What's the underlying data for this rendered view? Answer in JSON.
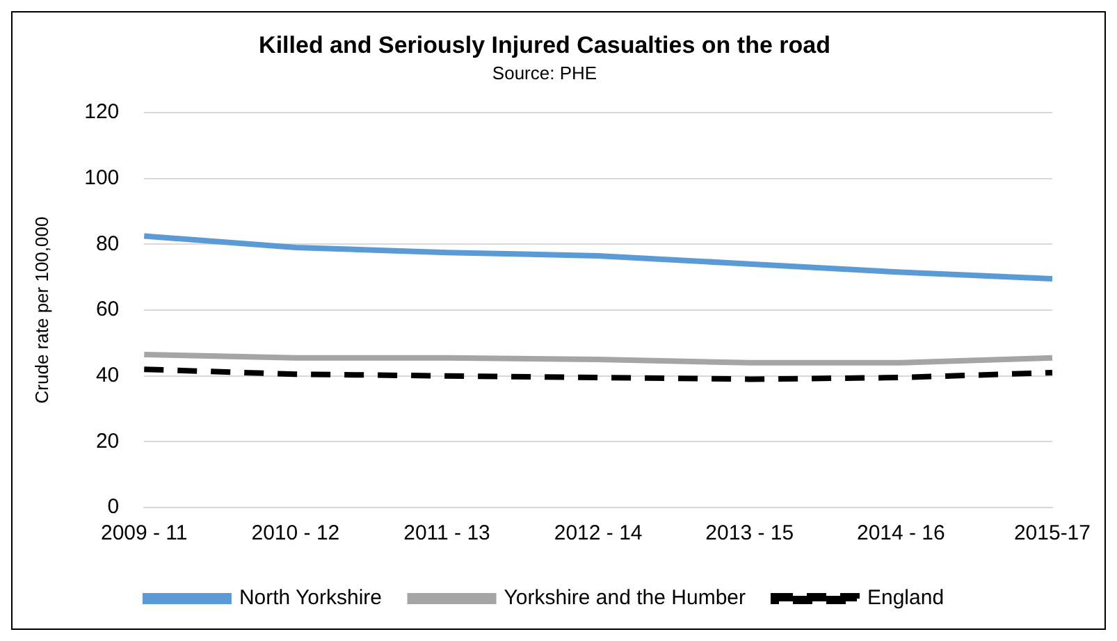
{
  "chart_data": {
    "type": "line",
    "title": "Killed and Seriously Injured Casualties on the road",
    "subtitle": "Source: PHE",
    "ylabel": "Crude rate per 100,000",
    "categories": [
      "2009 - 11",
      "2010 - 12",
      "2011 - 13",
      "2012 - 14",
      "2013 - 15",
      "2014 - 16",
      "2015-17"
    ],
    "series": [
      {
        "name": "North Yorkshire",
        "color": "#5b9bd5",
        "values": [
          82.5,
          79,
          77.5,
          76.5,
          74,
          71.5,
          69.5
        ]
      },
      {
        "name": "Yorkshire and the Humber",
        "color": "#a5a5a5",
        "values": [
          46.5,
          45.5,
          45.5,
          45,
          44,
          44,
          45.5
        ]
      },
      {
        "name": "England",
        "color": "#000000",
        "line_style": "dashed",
        "values": [
          42,
          40.5,
          40,
          39.5,
          39,
          39.5,
          41
        ]
      }
    ],
    "ylim": [
      0,
      120
    ],
    "yticks": [
      0,
      20,
      40,
      60,
      80,
      100,
      120
    ],
    "grid": "y",
    "legend": "bottom",
    "marker": "none",
    "line_style": "solid"
  }
}
